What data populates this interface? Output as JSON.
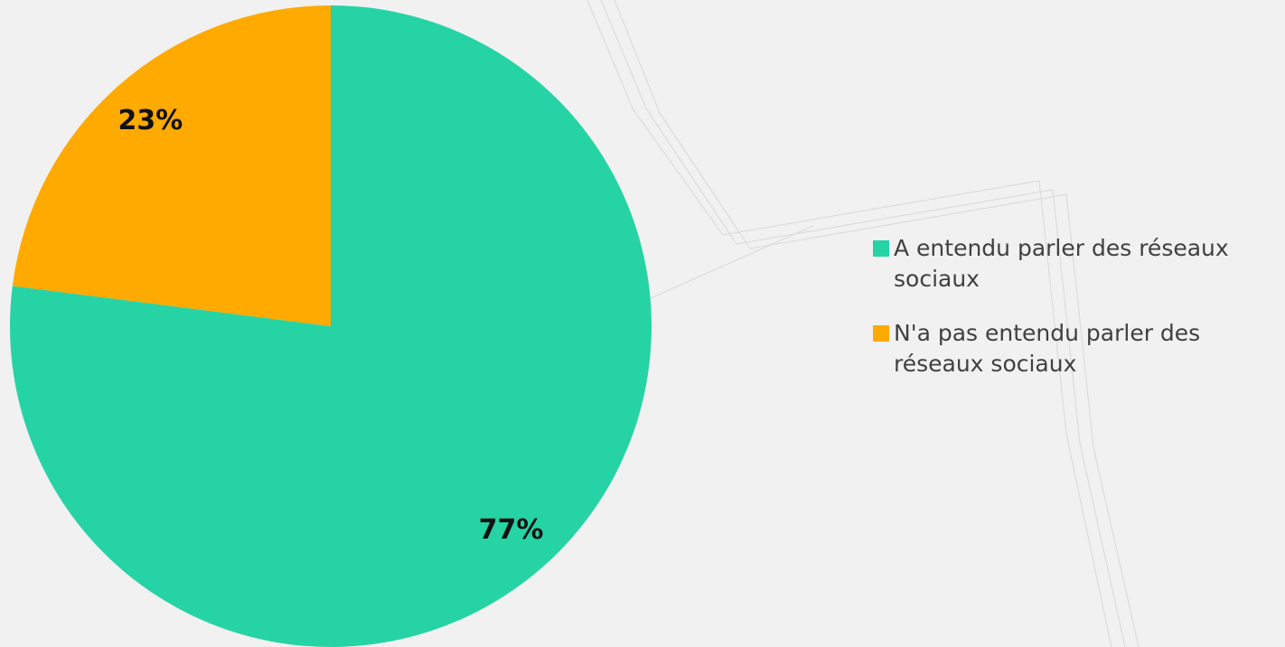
{
  "chart_data": {
    "type": "pie",
    "categories": [
      "A entendu parler des réseaux sociaux",
      "N'a pas entendu parler des réseaux sociaux"
    ],
    "values": [
      77,
      23
    ],
    "value_labels": [
      "77%",
      "23%"
    ],
    "colors": [
      "#26d3a5",
      "#ffaa00"
    ],
    "legend": "right"
  }
}
